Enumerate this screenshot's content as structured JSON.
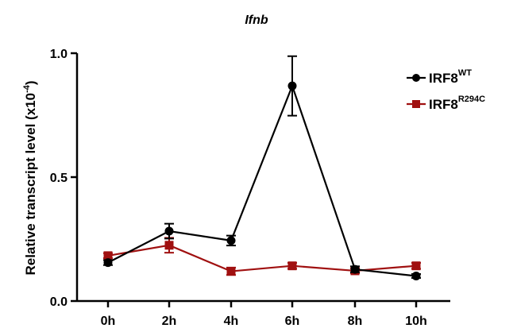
{
  "chart_data": {
    "type": "line",
    "title": "Ifnb",
    "ylabel": "Relative transcript level (x10",
    "ylabel_exponent": "-4",
    "ylabel_close": ")",
    "xlabel": "",
    "categories": [
      "0h",
      "2h",
      "4h",
      "6h",
      "8h",
      "10h"
    ],
    "ylim": [
      0,
      1.0
    ],
    "yticks": [
      0.0,
      0.5,
      1.0
    ],
    "ytick_labels": [
      "0.0",
      "0.5",
      "1.0"
    ],
    "legend_position": "top-right",
    "series": [
      {
        "name": "IRF8",
        "name_superscript": "WT",
        "color": "#000000",
        "marker": "circle",
        "values": [
          0.155,
          0.282,
          0.244,
          0.868,
          0.128,
          0.101
        ],
        "errors": [
          0.01,
          0.03,
          0.02,
          0.12,
          0.012,
          0.008
        ]
      },
      {
        "name": "IRF8",
        "name_superscript": "R294C",
        "color": "#a01010",
        "marker": "square",
        "values": [
          0.183,
          0.225,
          0.12,
          0.142,
          0.122,
          0.142
        ],
        "errors": [
          0.01,
          0.03,
          0.015,
          0.012,
          0.01,
          0.012
        ]
      }
    ]
  }
}
